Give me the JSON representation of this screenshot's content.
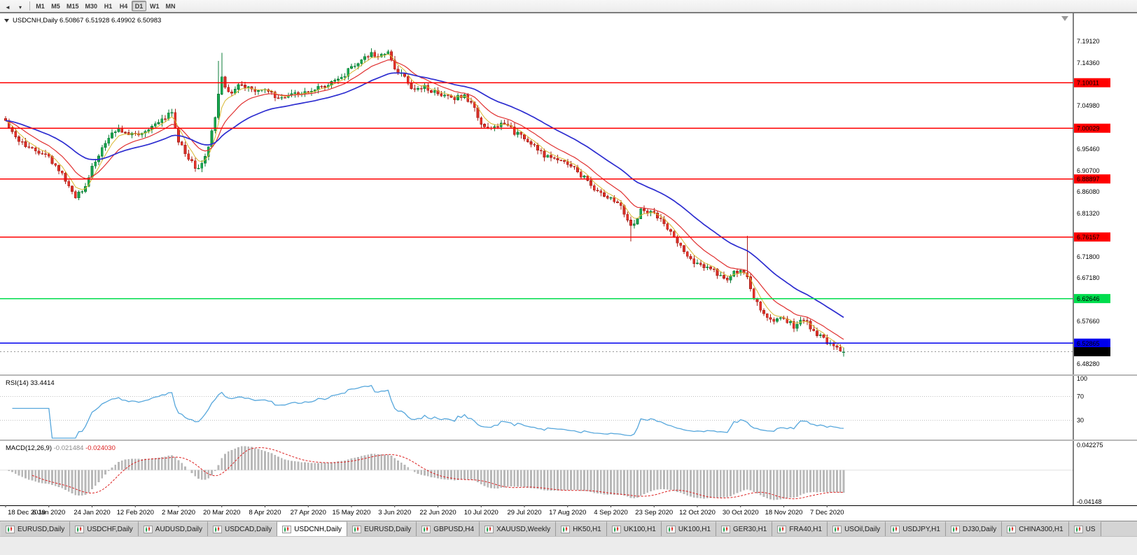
{
  "toolbar": {
    "icons": [
      {
        "name": "scroll-back-icon",
        "glyph": "◄"
      },
      {
        "name": "dropdown-arrow-icon",
        "glyph": "▾"
      }
    ],
    "timeframes": [
      {
        "label": "M1",
        "active": false
      },
      {
        "label": "M5",
        "active": false
      },
      {
        "label": "M15",
        "active": false
      },
      {
        "label": "M30",
        "active": false
      },
      {
        "label": "H1",
        "active": false
      },
      {
        "label": "H4",
        "active": false
      },
      {
        "label": "D1",
        "active": true
      },
      {
        "label": "W1",
        "active": false
      },
      {
        "label": "MN",
        "active": false
      }
    ]
  },
  "chart": {
    "header": "USDCNH,Daily 6.50867 6.51928 6.49902 6.50983",
    "collapse_icon": "expand-triangle-icon"
  },
  "chart_data": {
    "type": "candlestick",
    "symbol": "USDCNH",
    "period": "Daily",
    "title": "USDCNH,Daily",
    "ohlc": {
      "open": 6.50867,
      "high": 6.51928,
      "low": 6.49902,
      "close": 6.50983
    },
    "y_ticks": [
      7.1912,
      7.1436,
      7.0498,
      6.9546,
      6.907,
      6.8608,
      6.8132,
      6.718,
      6.6718,
      6.5766,
      6.4828
    ],
    "y_range": [
      6.46,
      7.254
    ],
    "x_labels": [
      "18 Dec 2019",
      "6 Jan 2020",
      "24 Jan 2020",
      "12 Feb 2020",
      "2 Mar 2020",
      "20 Mar 2020",
      "8 Apr 2020",
      "27 Apr 2020",
      "15 May 2020",
      "3 Jun 2020",
      "22 Jun 2020",
      "10 Jul 2020",
      "29 Jul 2020",
      "17 Aug 2020",
      "4 Sep 2020",
      "23 Sep 2020",
      "12 Oct 2020",
      "30 Oct 2020",
      "18 Nov 2020",
      "7 Dec 2020"
    ],
    "candles_per_label": 13,
    "candle_count": 253,
    "price_anchors": [
      [
        0,
        7.012
      ],
      [
        4,
        6.972
      ],
      [
        8,
        6.958
      ],
      [
        13,
        6.938
      ],
      [
        17,
        6.898
      ],
      [
        21,
        6.852
      ],
      [
        24,
        6.872
      ],
      [
        26,
        6.915
      ],
      [
        30,
        6.972
      ],
      [
        34,
        6.998
      ],
      [
        39,
        6.985
      ],
      [
        43,
        6.992
      ],
      [
        47,
        7.022
      ],
      [
        50,
        7.032
      ],
      [
        52,
        6.975
      ],
      [
        55,
        6.935
      ],
      [
        58,
        6.908
      ],
      [
        61,
        6.955
      ],
      [
        63,
        7.028
      ],
      [
        65,
        7.112
      ],
      [
        66,
        7.088
      ],
      [
        68,
        7.075
      ],
      [
        71,
        7.098
      ],
      [
        74,
        7.082
      ],
      [
        78,
        7.09
      ],
      [
        82,
        7.065
      ],
      [
        86,
        7.072
      ],
      [
        91,
        7.078
      ],
      [
        95,
        7.092
      ],
      [
        99,
        7.102
      ],
      [
        102,
        7.118
      ],
      [
        104,
        7.135
      ],
      [
        107,
        7.152
      ],
      [
        110,
        7.168
      ],
      [
        112,
        7.155
      ],
      [
        115,
        7.172
      ],
      [
        117,
        7.132
      ],
      [
        120,
        7.112
      ],
      [
        123,
        7.082
      ],
      [
        126,
        7.092
      ],
      [
        130,
        7.076
      ],
      [
        134,
        7.064
      ],
      [
        138,
        7.072
      ],
      [
        141,
        7.048
      ],
      [
        143,
        7.006
      ],
      [
        146,
        6.996
      ],
      [
        150,
        7.012
      ],
      [
        153,
        6.992
      ],
      [
        156,
        6.976
      ],
      [
        160,
        6.952
      ],
      [
        164,
        6.932
      ],
      [
        169,
        6.924
      ],
      [
        174,
        6.892
      ],
      [
        178,
        6.858
      ],
      [
        182,
        6.846
      ],
      [
        185,
        6.832
      ],
      [
        188,
        6.782
      ],
      [
        191,
        6.818
      ],
      [
        195,
        6.812
      ],
      [
        198,
        6.792
      ],
      [
        202,
        6.748
      ],
      [
        205,
        6.722
      ],
      [
        208,
        6.702
      ],
      [
        211,
        6.696
      ],
      [
        214,
        6.682
      ],
      [
        217,
        6.672
      ],
      [
        221,
        6.692
      ],
      [
        223,
        6.672
      ],
      [
        225,
        6.628
      ],
      [
        227,
        6.602
      ],
      [
        230,
        6.578
      ],
      [
        234,
        6.584
      ],
      [
        237,
        6.566
      ],
      [
        240,
        6.582
      ],
      [
        243,
        6.556
      ],
      [
        247,
        6.532
      ],
      [
        250,
        6.52
      ],
      [
        252,
        6.50983
      ]
    ],
    "spikes": [
      {
        "i": 64,
        "high": 7.148
      },
      {
        "i": 65,
        "high": 7.166
      },
      {
        "i": 188,
        "low": 6.752
      },
      {
        "i": 223,
        "high": 6.764
      }
    ],
    "hlines": [
      {
        "price": 7.10011,
        "label": "7.10011",
        "color": "#FF0000",
        "text_color": "#FFFFFF"
      },
      {
        "price": 7.00029,
        "label": "7.00029",
        "color": "#FF0000",
        "text_color": "#FFFFFF"
      },
      {
        "price": 6.88897,
        "label": "6.88897",
        "color": "#FF0000",
        "text_color": "#FFFFFF"
      },
      {
        "price": 6.76157,
        "label": "6.76157",
        "color": "#FF0000",
        "text_color": "#FFFFFF"
      },
      {
        "price": 6.62646,
        "label": "6.62646",
        "color": "#00DD4D",
        "text_color": "#FFFFFF"
      },
      {
        "price": 6.52865,
        "label": "6.52865",
        "color": "#0000EE",
        "text_color": "#FFFFFF"
      }
    ],
    "current_price": {
      "value": 6.50983,
      "label": "6.50983",
      "tag_color": "#000000",
      "text_color": "#FFFFFF"
    },
    "moving_averages": [
      {
        "name": "ma-fast",
        "period": 5,
        "color": "#D9B830",
        "width": 1
      },
      {
        "name": "ma-medium",
        "period": 13,
        "color": "#E03030",
        "width": 1.2
      },
      {
        "name": "ma-slow",
        "period": 34,
        "color": "#2D2DD0",
        "width": 1.7
      }
    ],
    "indicators": [
      {
        "name": "rsi",
        "header": "RSI(14) 33.4414",
        "period": 14,
        "value": 33.4414,
        "levels": [
          70,
          30
        ],
        "scale_labels": [
          {
            "value": 100,
            "label": "100"
          },
          {
            "value": 70,
            "label": "70"
          },
          {
            "value": 30,
            "label": "30"
          }
        ],
        "color": "#57A7DC"
      },
      {
        "name": "macd",
        "name_part": "MACD(12,26,9)",
        "main_value": "-0.021484",
        "signal_value": "-0.024030",
        "fast": 12,
        "slow": 26,
        "signal": 9,
        "scale_top_label": "0.042275",
        "scale_bottom_label": "-0.04148",
        "hist_color": "#B8B8B8",
        "signal_color": "#DD2222"
      }
    ],
    "colors": {
      "up": "#19A94F",
      "up_border": "#0C7D38",
      "down": "#E63229",
      "down_border": "#A8201A",
      "background": "#FFFFFF",
      "axis_text": "#000000",
      "bid_line": "#999999"
    }
  },
  "tabbar": {
    "tabs": [
      {
        "label": "EURUSD,Daily",
        "active": false
      },
      {
        "label": "USDCHF,Daily",
        "active": false
      },
      {
        "label": "AUDUSD,Daily",
        "active": false
      },
      {
        "label": "USDCAD,Daily",
        "active": false
      },
      {
        "label": "USDCNH,Daily",
        "active": true
      },
      {
        "label": "EURUSD,Daily",
        "active": false
      },
      {
        "label": "GBPUSD,H4",
        "active": false
      },
      {
        "label": "XAUUSD,Weekly",
        "active": false
      },
      {
        "label": "HK50,H1",
        "active": false
      },
      {
        "label": "UK100,H1",
        "active": false
      },
      {
        "label": "UK100,H1",
        "active": false
      },
      {
        "label": "GER30,H1",
        "active": false
      },
      {
        "label": "FRA40,H1",
        "active": false
      },
      {
        "label": "USOil,Daily",
        "active": false
      },
      {
        "label": "USDJPY,H1",
        "active": false
      },
      {
        "label": "DJ30,Daily",
        "active": false
      },
      {
        "label": "CHINA300,H1",
        "active": false
      },
      {
        "label": "US",
        "active": false
      }
    ]
  }
}
